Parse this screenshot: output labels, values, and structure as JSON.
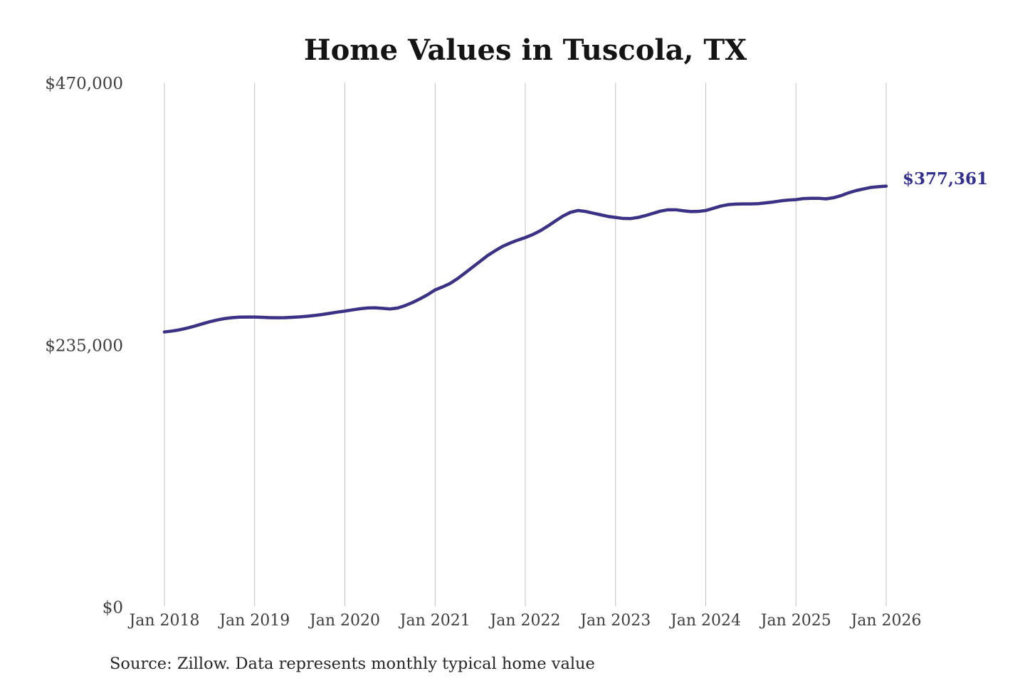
{
  "title": "Home Values in Tuscola, TX",
  "annotation": {
    "latest_value_label": "$377,361"
  },
  "source_note": "Source: Zillow. Data represents monthly typical home value",
  "colors": {
    "background": "#ffffff",
    "line": "#3b3286",
    "annotation_text": "#32308e",
    "grid": "#c2c2c2",
    "axis_text": "#3f3f3f",
    "title_text": "#141414",
    "source_text": "#262626"
  },
  "chart_data": {
    "type": "line",
    "title": "Home Values in Tuscola, TX",
    "xlabel": "",
    "ylabel": "",
    "x_unit": "month",
    "x_start": "2018-01",
    "x_end": "2026-01",
    "x_tick_labels": [
      "Jan 2018",
      "Jan 2019",
      "Jan 2020",
      "Jan 2021",
      "Jan 2022",
      "Jan 2023",
      "Jan 2024",
      "Jan 2025",
      "Jan 2026"
    ],
    "y_tick_labels": [
      "$0",
      "$235,000",
      "$470,000"
    ],
    "y_tick_values": [
      0,
      235000,
      470000
    ],
    "ylim": [
      0,
      470000
    ],
    "grid": "vertical-only",
    "legend": "none",
    "final_value": 377361,
    "series": [
      {
        "name": "Typical home value",
        "values": [
          246600,
          247400,
          248500,
          250000,
          251800,
          253800,
          255700,
          257300,
          258600,
          259400,
          259900,
          260000,
          260000,
          259700,
          259400,
          259300,
          259400,
          259700,
          260100,
          260700,
          261400,
          262300,
          263300,
          264400,
          265300,
          266400,
          267400,
          268100,
          268300,
          267800,
          267200,
          268000,
          270200,
          273000,
          276300,
          280000,
          284300,
          287000,
          290100,
          294500,
          299600,
          304800,
          310000,
          315200,
          319500,
          323400,
          326400,
          329000,
          331300,
          334000,
          337400,
          341600,
          346100,
          350500,
          353900,
          355500,
          354700,
          353200,
          351700,
          350200,
          349300,
          348400,
          348300,
          349300,
          351000,
          353000,
          355000,
          356200,
          356200,
          355300,
          354600,
          354700,
          355500,
          357500,
          359500,
          360800,
          361300,
          361400,
          361400,
          361700,
          362400,
          363200,
          364200,
          364900,
          365300,
          366200,
          366500,
          366500,
          366000,
          367000,
          368900,
          371400,
          373400,
          374900,
          376300,
          376900,
          377361
        ]
      }
    ]
  }
}
